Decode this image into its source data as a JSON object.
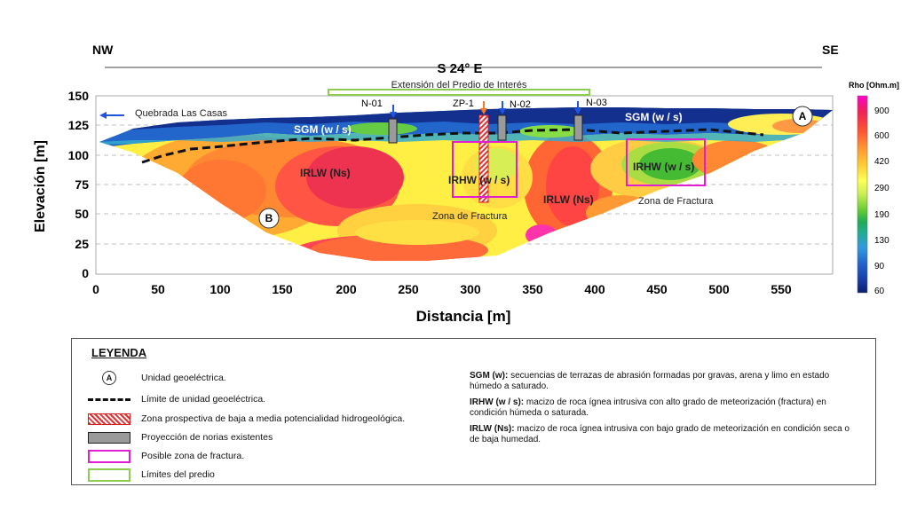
{
  "header": {
    "nw": "NW",
    "se": "SE",
    "direction": "S 24° E",
    "property_extent": "Extensión del Predio de Interés"
  },
  "axes": {
    "ylabel": "Elevación [m]",
    "xlabel": "Distancia [m]",
    "yticks": [
      "0",
      "25",
      "50",
      "75",
      "100",
      "125",
      "150"
    ],
    "xticks": [
      "0",
      "50",
      "100",
      "150",
      "200",
      "250",
      "300",
      "350",
      "400",
      "450",
      "500",
      "550"
    ]
  },
  "annotations": {
    "quebrada": "Quebrada Las Casas",
    "wells": [
      "N-01",
      "ZP-1",
      "N-02",
      "N-03"
    ],
    "sgm_left": "SGM (w / s)",
    "sgm_right": "SGM (w / s)",
    "irlw_left": "IRLW (Ns)",
    "irlw_mid": "IRLW (Ns)",
    "irhw_mid": "IRHW (w / s)",
    "irhw_right": "IRHW (w / s)",
    "fractura_mid": "Zona de Fractura",
    "fractura_right": "Zona de Fractura",
    "unit_a": "A",
    "unit_b": "B"
  },
  "colorbar": {
    "title": "Rho [Ohm.m]",
    "ticks": [
      "900",
      "600",
      "420",
      "290",
      "190",
      "130",
      "90",
      "60"
    ],
    "colors": [
      "#ff00cc",
      "#ee2255",
      "#ff6633",
      "#ff9933",
      "#ffcc33",
      "#ffff55",
      "#d0f060",
      "#88dd44",
      "#33bb33",
      "#22aa88",
      "#3399dd",
      "#2266cc",
      "#1a3ea8",
      "#0a1f6e"
    ]
  },
  "legend": {
    "title": "LEYENDA",
    "items": [
      {
        "symbol_label": "A",
        "label": "Unidad geoeléctrica."
      },
      {
        "label": "Límite de unidad geoeléctrica."
      },
      {
        "label": "Zona prospectiva de baja a media potencialidad hidrogeológica."
      },
      {
        "label": "Proyección de norias existentes"
      },
      {
        "label": "Posible zona de fractura."
      },
      {
        "label": "Límites del predio"
      }
    ],
    "descriptions": [
      {
        "code": "SGM (w):",
        "text": "secuencias de terrazas de abrasión formadas por gravas, arena y limo en estado húmedo a saturado."
      },
      {
        "code": "IRHW (w / s):",
        "text": "macizo de roca ígnea intrusiva con alto grado de meteorización (fractura) en condición húmeda o saturada."
      },
      {
        "code": "IRLW (Ns):",
        "text": "macizo de roca ígnea intrusiva con bajo grado de meteorización en condición seca o de baja humedad."
      }
    ]
  }
}
